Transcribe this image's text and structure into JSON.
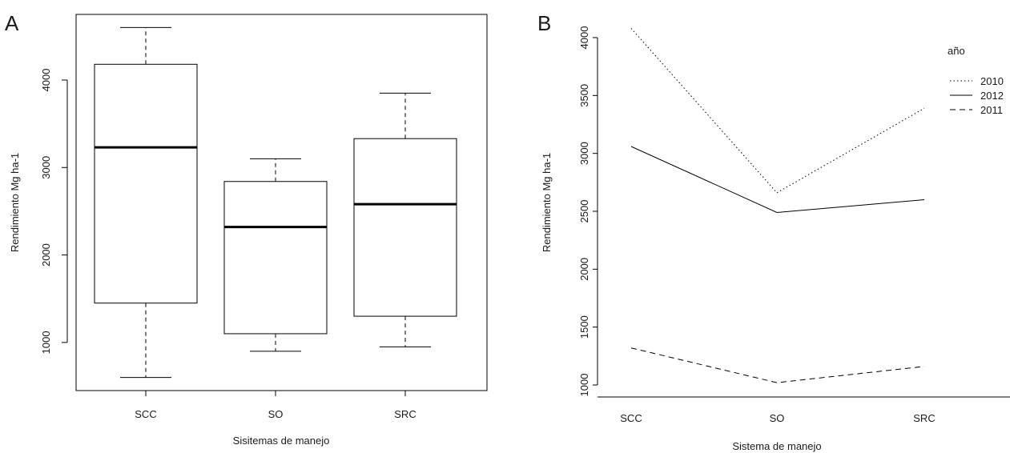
{
  "chart_data": [
    {
      "type": "boxplot",
      "panel_label": "A",
      "xlabel": "Sisitemas de manejo",
      "ylabel": "Rendimiento Mg ha-1",
      "ylim": [
        450,
        4750
      ],
      "yticks": [
        1000,
        2000,
        3000,
        4000
      ],
      "categories": [
        "SCC",
        "SO",
        "SRC"
      ],
      "boxes": [
        {
          "category": "SCC",
          "min": 600,
          "q1": 1450,
          "median": 3230,
          "q3": 4180,
          "max": 4600
        },
        {
          "category": "SO",
          "min": 900,
          "q1": 1100,
          "median": 2320,
          "q3": 2840,
          "max": 3100
        },
        {
          "category": "SRC",
          "min": 950,
          "q1": 1300,
          "median": 2580,
          "q3": 3330,
          "max": 3850
        }
      ]
    },
    {
      "type": "line",
      "panel_label": "B",
      "xlabel": "Sistema de manejo",
      "ylabel": "Rendimiento Mg ha-1",
      "ylim": [
        1000,
        4080
      ],
      "yticks": [
        1000,
        1500,
        2000,
        2500,
        3000,
        3500,
        4000
      ],
      "categories": [
        "SCC",
        "SO",
        "SRC"
      ],
      "legend_title": "año",
      "legend_position": "top-right",
      "series": [
        {
          "name": "2010",
          "line_style": "dotted",
          "values": [
            4080,
            2660,
            3390
          ]
        },
        {
          "name": "2012",
          "line_style": "solid",
          "values": [
            3060,
            2490,
            2600
          ]
        },
        {
          "name": "2011",
          "line_style": "dashed",
          "values": [
            1320,
            1020,
            1160
          ]
        }
      ]
    }
  ]
}
